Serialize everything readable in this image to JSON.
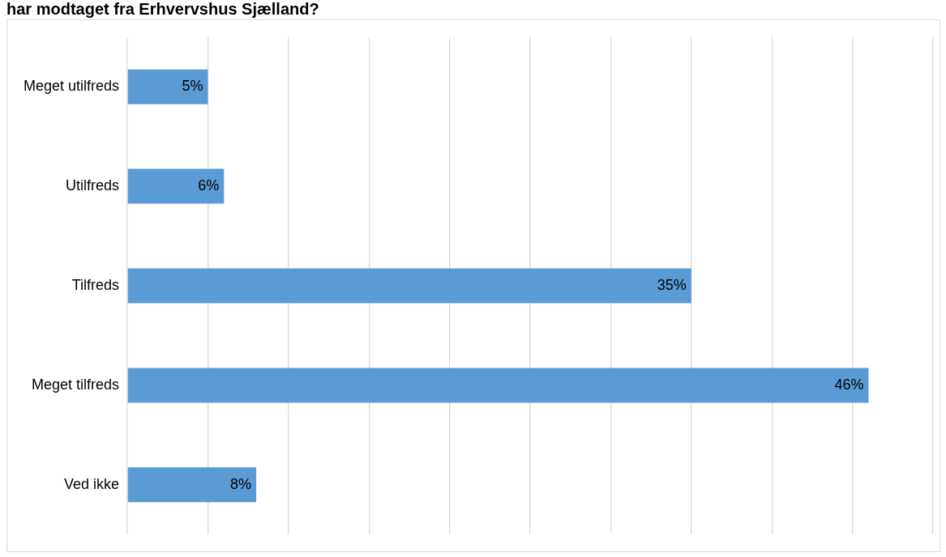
{
  "chart_data": {
    "type": "bar",
    "orientation": "horizontal",
    "title": "har modtaget fra Erhvervshus Sjælland?",
    "categories": [
      "Meget utilfreds",
      "Utilfreds",
      "Tilfreds",
      "Meget tilfreds",
      "Ved ikke"
    ],
    "values": [
      5,
      6,
      35,
      46,
      8
    ],
    "value_labels": [
      "5%",
      "6%",
      "35%",
      "46%",
      "8%"
    ],
    "color": "#5b9bd5",
    "xlim": [
      0,
      50
    ],
    "xticks": [
      {
        "value": 0,
        "label": null
      },
      {
        "value": 5,
        "label": null
      },
      {
        "value": 10,
        "label": null
      },
      {
        "value": 15,
        "label": null
      },
      {
        "value": 20,
        "label": null
      },
      {
        "value": 25,
        "label": null
      },
      {
        "value": 30,
        "label": null
      },
      {
        "value": 35,
        "label": null
      },
      {
        "value": 40,
        "label": null
      },
      {
        "value": 45,
        "label": null
      },
      {
        "value": 50,
        "label": null
      }
    ],
    "tick_labels": "y",
    "grid": "x"
  }
}
